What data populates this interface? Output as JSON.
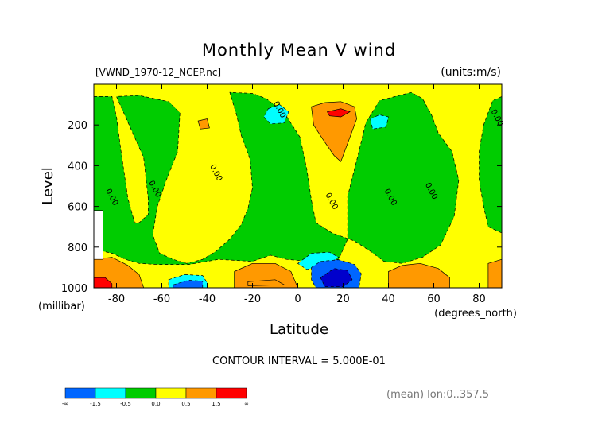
{
  "chart_data": {
    "type": "heatmap",
    "title": "Monthly Mean V wind",
    "dataset": "[VWND_1970-12_NCEP.nc]",
    "units": "(units:m/s)",
    "xlabel": "Latitude",
    "xunits": "(degrees_north)",
    "ylabel": "Level",
    "yunits": "(millibar)",
    "x_ticks": [
      -80,
      -60,
      -40,
      -20,
      0,
      20,
      40,
      60,
      80
    ],
    "y_ticks": [
      200,
      400,
      600,
      800,
      1000
    ],
    "xlim": [
      -90,
      90
    ],
    "ylim": [
      1000,
      0
    ],
    "contour_interval_text": "CONTOUR INTERVAL = 5.000E-01",
    "footer_note": "(mean) lon:0..357.5",
    "contour_labels": [
      {
        "text": "0.00",
        "lat": -83,
        "lev": 560
      },
      {
        "text": "0.00",
        "lat": -64,
        "lev": 520
      },
      {
        "text": "0.00",
        "lat": -37,
        "lev": 440
      },
      {
        "text": "0.00",
        "lat": -9,
        "lev": 130
      },
      {
        "text": "0.00",
        "lat": 14,
        "lev": 580
      },
      {
        "text": "0.00",
        "lat": 40,
        "lev": 560
      },
      {
        "text": "0.00",
        "lat": 58,
        "lev": 530
      },
      {
        "text": "0.00",
        "lat": 87,
        "lev": 170
      }
    ],
    "regions": [
      {
        "level": 0.0,
        "color": "#ffff00",
        "points": [
          [
            -90,
            0
          ],
          [
            90,
            0
          ],
          [
            90,
            1000
          ],
          [
            -90,
            1000
          ]
        ]
      },
      {
        "level": -0.5,
        "color": "#00cc00",
        "points": [
          [
            -90,
            60
          ],
          [
            -82,
            60
          ],
          [
            -80,
            160
          ],
          [
            -78,
            330
          ],
          [
            -75,
            560
          ],
          [
            -72,
            680
          ],
          [
            -70,
            680
          ],
          [
            -66,
            640
          ],
          [
            -66,
            560
          ],
          [
            -68,
            360
          ],
          [
            -76,
            160
          ],
          [
            -80,
            60
          ],
          [
            -70,
            55
          ],
          [
            -57,
            85
          ],
          [
            -52,
            140
          ],
          [
            -53,
            330
          ],
          [
            -58,
            470
          ],
          [
            -62,
            600
          ],
          [
            -64,
            740
          ],
          [
            -61,
            830
          ],
          [
            -55,
            860
          ],
          [
            -49,
            880
          ],
          [
            -42,
            860
          ],
          [
            -36,
            820
          ],
          [
            -30,
            760
          ],
          [
            -25,
            690
          ],
          [
            -22,
            610
          ],
          [
            -20,
            510
          ],
          [
            -21,
            370
          ],
          [
            -25,
            250
          ],
          [
            -27,
            150
          ],
          [
            -30,
            40
          ],
          [
            -20,
            45
          ],
          [
            -14,
            70
          ],
          [
            -6,
            140
          ],
          [
            1,
            260
          ],
          [
            4,
            420
          ],
          [
            6,
            570
          ],
          [
            8,
            680
          ],
          [
            15,
            730
          ],
          [
            25,
            770
          ],
          [
            32,
            820
          ],
          [
            38,
            870
          ],
          [
            46,
            880
          ],
          [
            55,
            850
          ],
          [
            63,
            790
          ],
          [
            69,
            650
          ],
          [
            71,
            470
          ],
          [
            68,
            330
          ],
          [
            62,
            240
          ],
          [
            59,
            150
          ],
          [
            55,
            70
          ],
          [
            50,
            40
          ],
          [
            36,
            80
          ],
          [
            30,
            190
          ],
          [
            27,
            330
          ],
          [
            22,
            550
          ],
          [
            22,
            760
          ],
          [
            18,
            860
          ],
          [
            5,
            870
          ],
          [
            -5,
            860
          ],
          [
            -12,
            840
          ],
          [
            -20,
            870
          ],
          [
            -35,
            860
          ],
          [
            -48,
            885
          ],
          [
            -62,
            885
          ],
          [
            -70,
            880
          ],
          [
            -76,
            860
          ],
          [
            -82,
            830
          ],
          [
            -90,
            810
          ]
        ]
      },
      {
        "level": -0.5,
        "color": "#00cc00",
        "points": [
          [
            90,
            60
          ],
          [
            86,
            80
          ],
          [
            82,
            200
          ],
          [
            80,
            330
          ],
          [
            80,
            470
          ],
          [
            82,
            600
          ],
          [
            84,
            700
          ],
          [
            90,
            730
          ]
        ]
      },
      {
        "level": 0.5,
        "color": "#ff9900",
        "points": [
          [
            -90,
            860
          ],
          [
            -82,
            850
          ],
          [
            -75,
            890
          ],
          [
            -70,
            935
          ],
          [
            -68,
            1000
          ],
          [
            -90,
            1000
          ]
        ]
      },
      {
        "level": 0.5,
        "color": "#ff9900",
        "points": [
          [
            -28,
            920
          ],
          [
            -20,
            880
          ],
          [
            -10,
            880
          ],
          [
            -3,
            920
          ],
          [
            0,
            1000
          ],
          [
            -28,
            1000
          ]
        ]
      },
      {
        "level": 0.5,
        "color": "#ff9900",
        "points": [
          [
            40,
            920
          ],
          [
            46,
            890
          ],
          [
            54,
            880
          ],
          [
            62,
            905
          ],
          [
            67,
            950
          ],
          [
            67,
            1000
          ],
          [
            40,
            1000
          ]
        ]
      },
      {
        "level": 0.5,
        "color": "#ff9900",
        "points": [
          [
            6,
            110
          ],
          [
            12,
            90
          ],
          [
            19,
            85
          ],
          [
            25,
            110
          ],
          [
            26,
            170
          ],
          [
            24,
            230
          ],
          [
            22,
            290
          ],
          [
            19,
            380
          ],
          [
            16,
            350
          ],
          [
            11,
            270
          ],
          [
            7,
            200
          ]
        ]
      },
      {
        "level": 0.5,
        "color": "#ff9900",
        "points": [
          [
            -44,
            180
          ],
          [
            -40,
            170
          ],
          [
            -39,
            215
          ],
          [
            -43,
            220
          ]
        ]
      },
      {
        "level": 0.5,
        "color": "#ff9900",
        "points": [
          [
            84,
            880
          ],
          [
            90,
            860
          ],
          [
            90,
            1000
          ],
          [
            84,
            1000
          ]
        ]
      },
      {
        "level": 1.0,
        "color": "#ff9900",
        "points": [
          [
            -22,
            970
          ],
          [
            -10,
            960
          ],
          [
            -6,
            985
          ],
          [
            -22,
            990
          ]
        ]
      },
      {
        "level": 1.5,
        "color": "#ff0000",
        "points": [
          [
            13,
            135
          ],
          [
            19,
            120
          ],
          [
            23,
            135
          ],
          [
            19,
            160
          ],
          [
            14,
            155
          ]
        ]
      },
      {
        "level": 1.5,
        "color": "#ff0000",
        "points": [
          [
            -90,
            950
          ],
          [
            -85,
            950
          ],
          [
            -82,
            980
          ],
          [
            -82,
            1000
          ],
          [
            -90,
            1000
          ]
        ]
      },
      {
        "level": -1.0,
        "color": "#00ffff",
        "points": [
          [
            -57,
            960
          ],
          [
            -50,
            935
          ],
          [
            -42,
            940
          ],
          [
            -40,
            975
          ],
          [
            -40,
            1000
          ],
          [
            -57,
            1000
          ]
        ]
      },
      {
        "level": -1.0,
        "color": "#00ffff",
        "points": [
          [
            0,
            880
          ],
          [
            6,
            830
          ],
          [
            14,
            825
          ],
          [
            18,
            850
          ],
          [
            14,
            880
          ],
          [
            4,
            910
          ]
        ]
      },
      {
        "level": -1.0,
        "color": "#00ffff",
        "points": [
          [
            -13,
            120
          ],
          [
            -8,
            100
          ],
          [
            -4,
            135
          ],
          [
            -6,
            190
          ],
          [
            -12,
            195
          ],
          [
            -15,
            160
          ]
        ]
      },
      {
        "level": -1.0,
        "color": "#00ffff",
        "points": [
          [
            32,
            170
          ],
          [
            36,
            150
          ],
          [
            40,
            160
          ],
          [
            39,
            210
          ],
          [
            33,
            220
          ]
        ]
      },
      {
        "level": -1.5,
        "color": "#0066ff",
        "points": [
          [
            -55,
            985
          ],
          [
            -48,
            962
          ],
          [
            -42,
            968
          ],
          [
            -42,
            1000
          ],
          [
            -55,
            1000
          ]
        ]
      },
      {
        "level": -1.5,
        "color": "#0066ff",
        "points": [
          [
            6,
            900
          ],
          [
            10,
            870
          ],
          [
            18,
            862
          ],
          [
            25,
            885
          ],
          [
            28,
            930
          ],
          [
            27,
            1000
          ],
          [
            8,
            1000
          ],
          [
            6,
            960
          ]
        ]
      },
      {
        "level": -2.0,
        "color": "#0000cc",
        "points": [
          [
            10,
            950
          ],
          [
            16,
            905
          ],
          [
            22,
            915
          ],
          [
            24,
            960
          ],
          [
            20,
            995
          ],
          [
            12,
            995
          ]
        ]
      },
      {
        "level": 99,
        "color": "#ffffff",
        "points": [
          [
            -90,
            620
          ],
          [
            -86,
            620
          ],
          [
            -86,
            860
          ],
          [
            -90,
            860
          ]
        ]
      }
    ],
    "legend": {
      "colors": [
        "#0066ff",
        "#00ffff",
        "#00cc00",
        "#ffff00",
        "#ff9900",
        "#ff0000"
      ],
      "labels": [
        "-∞",
        "-1.5",
        "-0.5",
        "0.0",
        "0.5",
        "1.5",
        "∞"
      ]
    }
  }
}
